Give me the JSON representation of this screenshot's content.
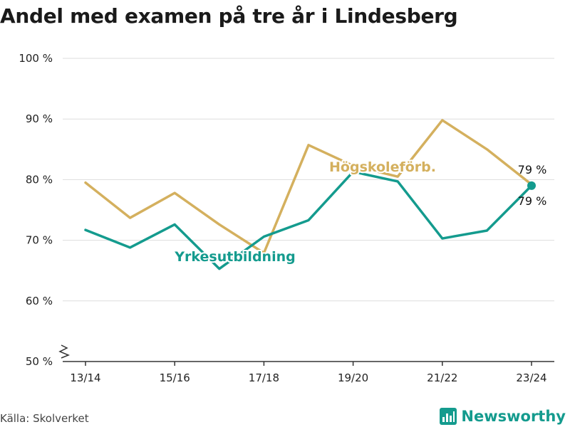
{
  "title": "Andel med examen på tre år i Lindesberg",
  "source": "Källa: Skolverket",
  "brand": {
    "name": "Newsworthy",
    "icon": "newsworthy-logo-icon",
    "color": "#149b8e"
  },
  "chart_data": {
    "type": "line",
    "x": [
      "13/14",
      "14/15",
      "15/16",
      "16/17",
      "17/18",
      "18/19",
      "19/20",
      "20/21",
      "21/22",
      "22/23",
      "23/24"
    ],
    "x_tick_labels": [
      "13/14",
      "15/16",
      "17/18",
      "19/20",
      "21/22",
      "23/24"
    ],
    "y_ticks": [
      50,
      60,
      70,
      80,
      90,
      100
    ],
    "y_tick_suffix": " %",
    "ylim": [
      50,
      100
    ],
    "grid": true,
    "broken_axis_marker": true,
    "series": [
      {
        "name": "Högskoleförb.",
        "color": "#d4b05e",
        "values": [
          79.5,
          73.7,
          77.8,
          72.6,
          67.9,
          85.7,
          82.3,
          80.5,
          89.8,
          85.0,
          79.2
        ],
        "end_label": "79 %"
      },
      {
        "name": "Yrkesutbildning",
        "color": "#149b8e",
        "values": [
          71.7,
          68.8,
          72.6,
          65.3,
          70.6,
          73.3,
          81.3,
          79.7,
          70.3,
          71.6,
          79.0
        ],
        "end_label": "79 %"
      }
    ]
  }
}
